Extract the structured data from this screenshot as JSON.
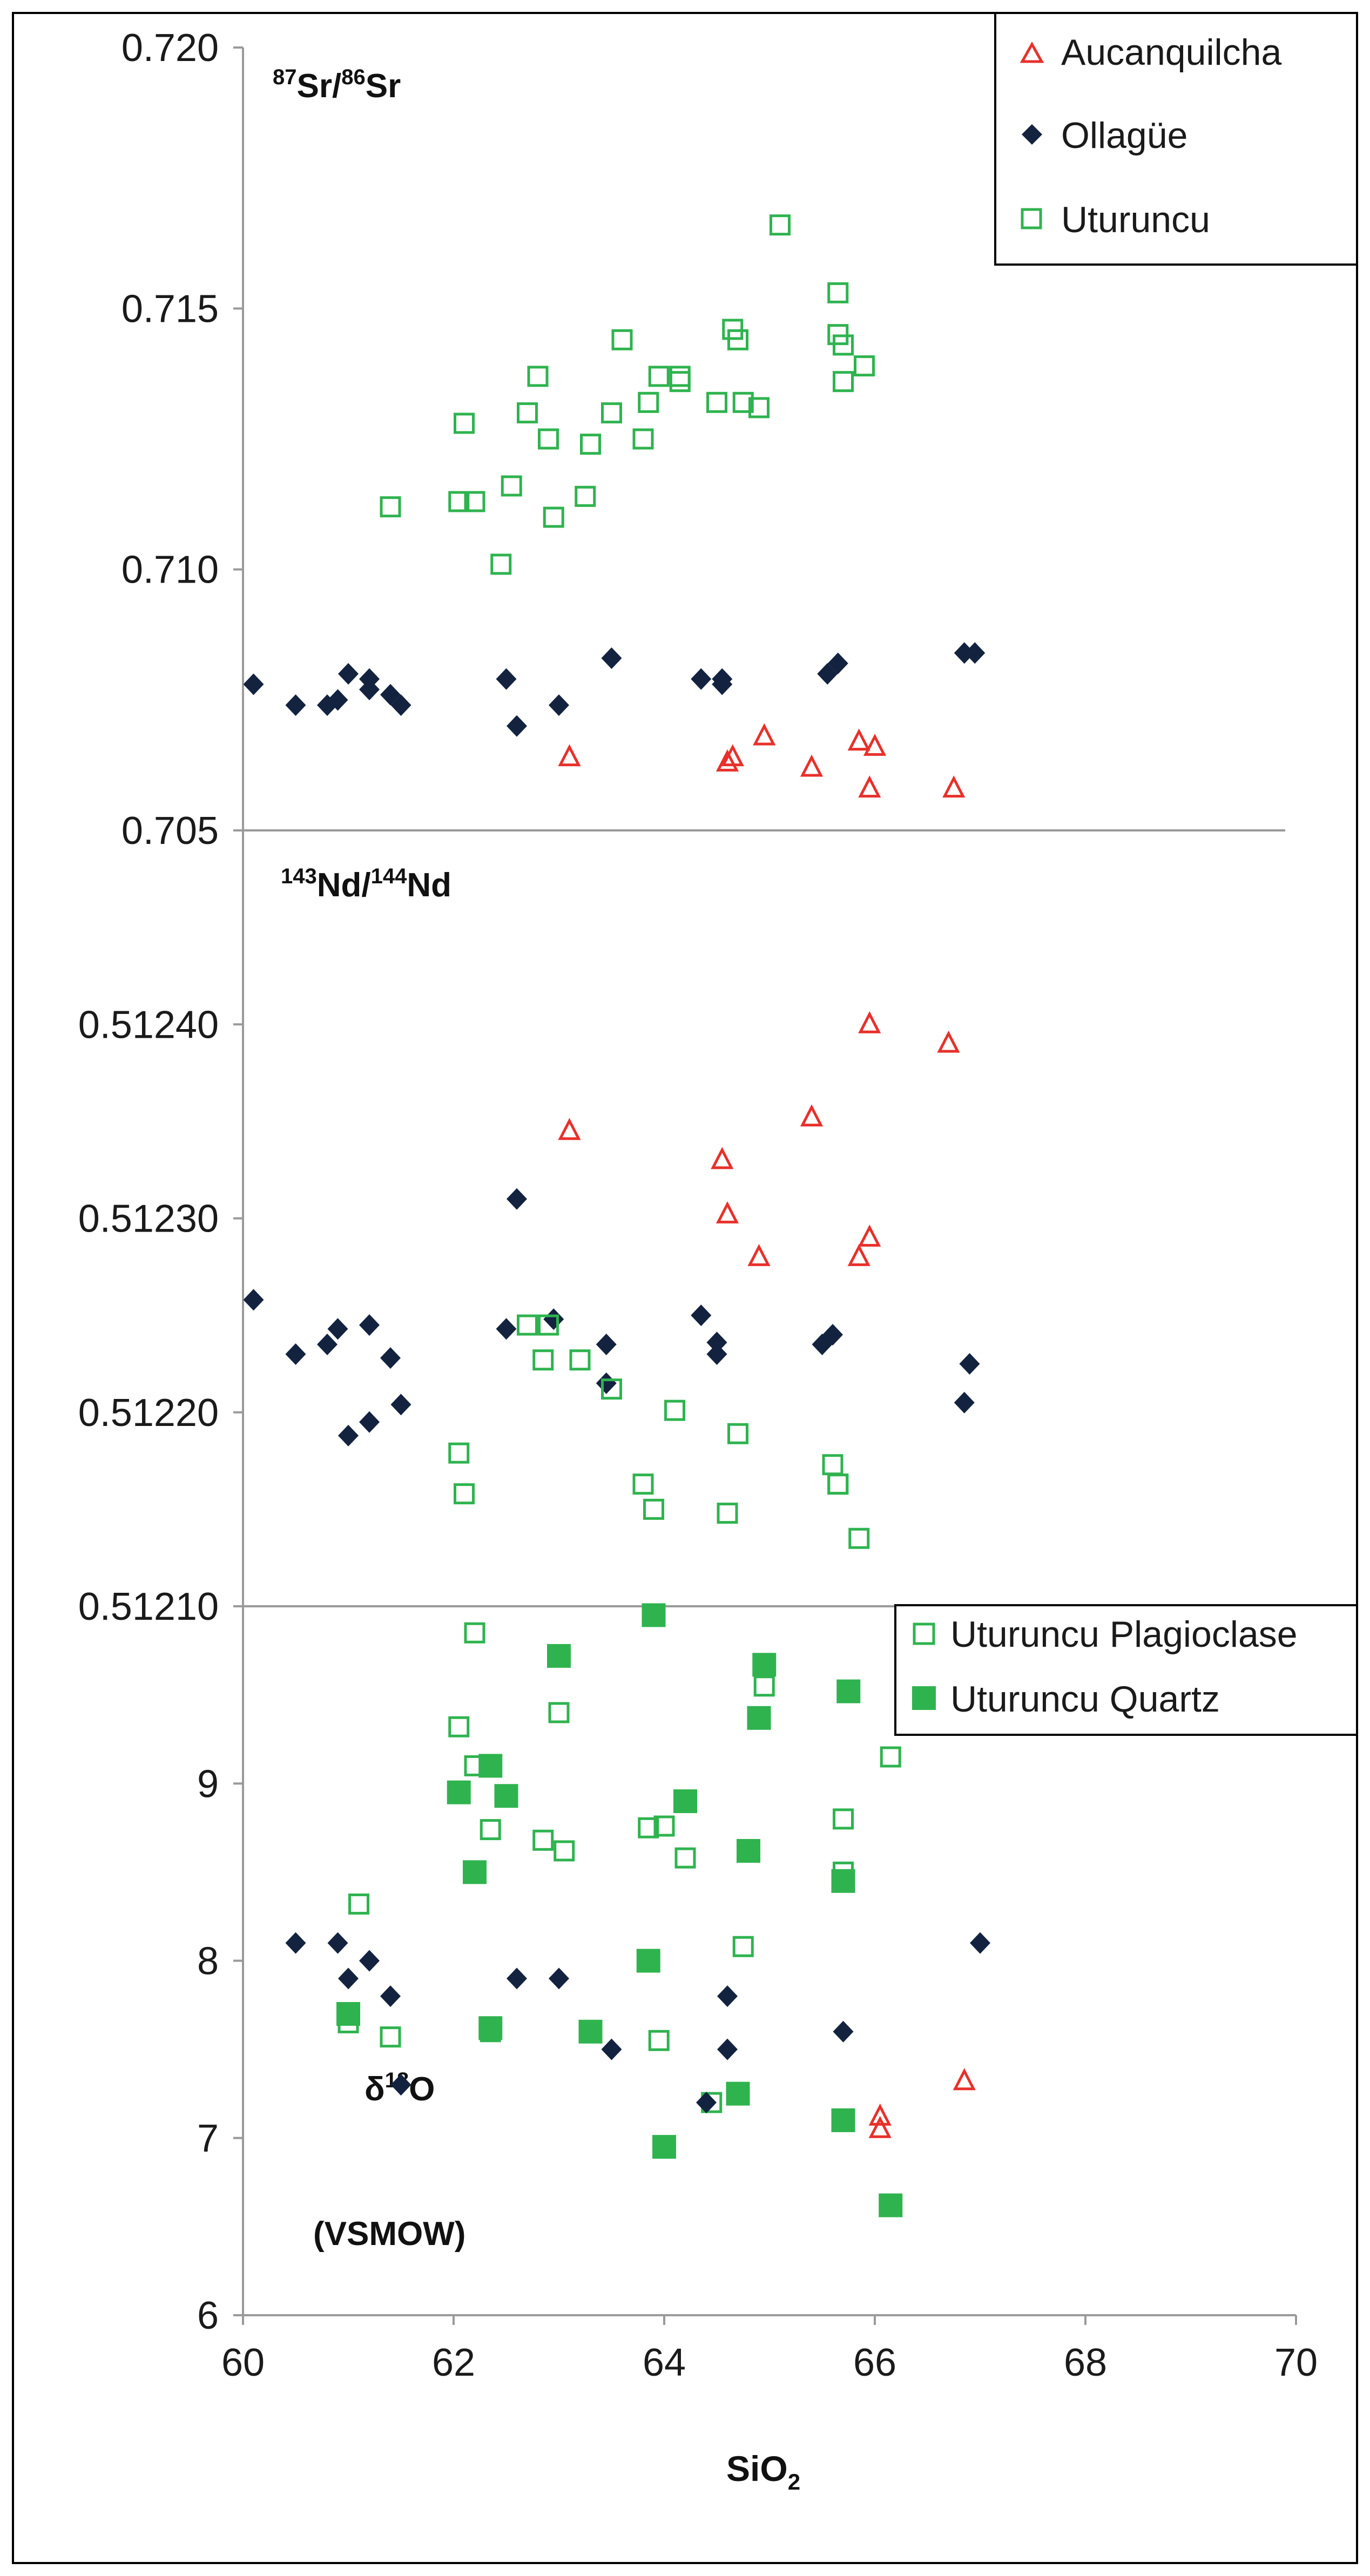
{
  "chart_data": {
    "type": "scatter",
    "xlabel": "SiO2",
    "xlim": [
      60,
      70
    ],
    "x_ticks": [
      "60",
      "62",
      "64",
      "66",
      "68",
      "70"
    ],
    "colors": {
      "aucanquilcha": "#e8302b",
      "ollague": "#13233f",
      "uturuncu": "#2fb34f",
      "axis": "#9a9a9a",
      "frame": "#000000"
    },
    "panels": [
      {
        "id": "sr",
        "label": {
          "sup1": "87",
          "main1": "Sr/",
          "sup2": "86",
          "main2": "Sr"
        },
        "ylim": [
          0.705,
          0.72
        ],
        "y_ticks": [
          {
            "value": 0.705,
            "text": "0.705"
          },
          {
            "value": 0.71,
            "text": "0.710"
          },
          {
            "value": 0.715,
            "text": "0.715"
          },
          {
            "value": 0.72,
            "text": "0.720"
          }
        ],
        "legend": [
          "Aucanquilcha",
          "Ollagüe",
          "Uturuncu"
        ],
        "series": [
          {
            "name": "Aucanquilcha",
            "marker": "triangle-open",
            "color": "#e8302b",
            "points": [
              [
                63.1,
                0.7064
              ],
              [
                64.6,
                0.7063
              ],
              [
                64.65,
                0.7064
              ],
              [
                64.95,
                0.7068
              ],
              [
                65.4,
                0.7062
              ],
              [
                65.85,
                0.7067
              ],
              [
                65.95,
                0.7058
              ],
              [
                66.0,
                0.7066
              ],
              [
                66.75,
                0.7058
              ]
            ]
          },
          {
            "name": "Ollagüe",
            "marker": "diamond-filled",
            "color": "#13233f",
            "points": [
              [
                60.1,
                0.7078
              ],
              [
                60.5,
                0.7074
              ],
              [
                60.8,
                0.7074
              ],
              [
                60.9,
                0.7075
              ],
              [
                61.0,
                0.708
              ],
              [
                61.2,
                0.7079
              ],
              [
                61.2,
                0.7077
              ],
              [
                61.4,
                0.7076
              ],
              [
                61.5,
                0.7074
              ],
              [
                62.5,
                0.7079
              ],
              [
                62.6,
                0.707
              ],
              [
                63.0,
                0.7074
              ],
              [
                63.5,
                0.7083
              ],
              [
                64.35,
                0.7079
              ],
              [
                64.55,
                0.7078
              ],
              [
                64.55,
                0.7079
              ],
              [
                65.55,
                0.708
              ],
              [
                65.65,
                0.7082
              ],
              [
                66.85,
                0.7084
              ],
              [
                66.95,
                0.7084
              ]
            ]
          },
          {
            "name": "Uturuncu",
            "marker": "square-open",
            "color": "#2fb34f",
            "points": [
              [
                61.4,
                0.7112
              ],
              [
                62.05,
                0.7113
              ],
              [
                62.1,
                0.7128
              ],
              [
                62.2,
                0.7113
              ],
              [
                62.45,
                0.7101
              ],
              [
                62.55,
                0.7116
              ],
              [
                62.7,
                0.713
              ],
              [
                62.8,
                0.7137
              ],
              [
                62.9,
                0.7125
              ],
              [
                62.95,
                0.711
              ],
              [
                63.25,
                0.7114
              ],
              [
                63.3,
                0.7124
              ],
              [
                63.5,
                0.713
              ],
              [
                63.6,
                0.7144
              ],
              [
                63.8,
                0.7125
              ],
              [
                63.85,
                0.7132
              ],
              [
                63.95,
                0.7137
              ],
              [
                64.15,
                0.7136
              ],
              [
                64.15,
                0.7137
              ],
              [
                64.5,
                0.7132
              ],
              [
                64.65,
                0.7146
              ],
              [
                64.7,
                0.7144
              ],
              [
                64.75,
                0.7132
              ],
              [
                64.9,
                0.7131
              ],
              [
                65.1,
                0.7166
              ],
              [
                65.65,
                0.7153
              ],
              [
                65.65,
                0.7145
              ],
              [
                65.7,
                0.7143
              ],
              [
                65.7,
                0.7136
              ],
              [
                65.9,
                0.7139
              ]
            ]
          }
        ]
      },
      {
        "id": "nd",
        "label": {
          "sup1": "143",
          "main1": "Nd/",
          "sup2": "144",
          "main2": "Nd"
        },
        "ylim": [
          0.5121,
          0.5125
        ],
        "y_ticks": [
          {
            "value": 0.5121,
            "text": "0.51210"
          },
          {
            "value": 0.5122,
            "text": "0.51220"
          },
          {
            "value": 0.5123,
            "text": "0.51230"
          },
          {
            "value": 0.5124,
            "text": "0.51240"
          }
        ],
        "series": [
          {
            "name": "Aucanquilcha",
            "marker": "triangle-open",
            "color": "#e8302b",
            "points": [
              [
                63.1,
                0.512345
              ],
              [
                64.55,
                0.51233
              ],
              [
                64.6,
                0.512302
              ],
              [
                64.9,
                0.51228
              ],
              [
                65.4,
                0.512352
              ],
              [
                65.85,
                0.51228
              ],
              [
                65.95,
                0.51229
              ],
              [
                65.95,
                0.5124
              ],
              [
                66.7,
                0.51239
              ]
            ]
          },
          {
            "name": "Ollagüe",
            "marker": "diamond-filled",
            "color": "#13233f",
            "points": [
              [
                60.1,
                0.512258
              ],
              [
                60.5,
                0.51223
              ],
              [
                60.8,
                0.512235
              ],
              [
                60.9,
                0.512243
              ],
              [
                61.0,
                0.512188
              ],
              [
                61.2,
                0.512245
              ],
              [
                61.2,
                0.512195
              ],
              [
                61.4,
                0.512228
              ],
              [
                61.5,
                0.512204
              ],
              [
                62.5,
                0.512243
              ],
              [
                62.6,
                0.51231
              ],
              [
                62.95,
                0.512248
              ],
              [
                63.45,
                0.512235
              ],
              [
                63.45,
                0.512215
              ],
              [
                64.35,
                0.51225
              ],
              [
                64.5,
                0.512236
              ],
              [
                64.5,
                0.51223
              ],
              [
                65.5,
                0.512235
              ],
              [
                65.6,
                0.51224
              ],
              [
                66.85,
                0.512205
              ],
              [
                66.9,
                0.512225
              ]
            ]
          },
          {
            "name": "Uturuncu",
            "marker": "square-open",
            "color": "#2fb34f",
            "points": [
              [
                62.05,
                0.512179
              ],
              [
                62.1,
                0.512158
              ],
              [
                62.7,
                0.512245
              ],
              [
                62.85,
                0.512227
              ],
              [
                62.9,
                0.512245
              ],
              [
                63.2,
                0.512227
              ],
              [
                63.5,
                0.512212
              ],
              [
                63.8,
                0.512163
              ],
              [
                63.9,
                0.51215
              ],
              [
                64.1,
                0.512201
              ],
              [
                64.6,
                0.512148
              ],
              [
                64.7,
                0.512189
              ],
              [
                65.6,
                0.512173
              ],
              [
                65.65,
                0.512163
              ],
              [
                65.65,
                0.512163
              ],
              [
                65.85,
                0.512135
              ]
            ]
          }
        ]
      },
      {
        "id": "o",
        "label": {
          "line1_pre": "δ",
          "line1_sup": "18",
          "line1_post": "O",
          "line2": "(VSMOW)"
        },
        "ylim": [
          6,
          10
        ],
        "y_ticks": [
          {
            "value": 6,
            "text": "6"
          },
          {
            "value": 7,
            "text": "7"
          },
          {
            "value": 8,
            "text": "8"
          },
          {
            "value": 9,
            "text": "9"
          }
        ],
        "legend": [
          "Uturuncu Plagioclase",
          "Uturuncu Quartz"
        ],
        "series": [
          {
            "name": "Uturuncu Plagioclase",
            "marker": "square-open",
            "color": "#2fb34f",
            "points": [
              [
                61.0,
                7.65
              ],
              [
                61.1,
                8.32
              ],
              [
                61.4,
                7.57
              ],
              [
                62.05,
                9.32
              ],
              [
                62.2,
                9.1
              ],
              [
                62.2,
                9.85
              ],
              [
                62.35,
                8.74
              ],
              [
                62.35,
                7.6
              ],
              [
                62.85,
                8.68
              ],
              [
                63.0,
                9.4
              ],
              [
                63.05,
                8.62
              ],
              [
                63.85,
                8.75
              ],
              [
                63.95,
                7.55
              ],
              [
                64.0,
                8.76
              ],
              [
                64.2,
                8.58
              ],
              [
                64.45,
                7.2
              ],
              [
                64.75,
                8.08
              ],
              [
                64.95,
                9.55
              ],
              [
                65.7,
                8.5
              ],
              [
                65.7,
                8.8
              ],
              [
                66.15,
                9.15
              ]
            ]
          },
          {
            "name": "Uturuncu Quartz",
            "marker": "square-filled",
            "color": "#2fb34f",
            "points": [
              [
                61.0,
                7.7
              ],
              [
                62.05,
                8.95
              ],
              [
                62.2,
                8.5
              ],
              [
                62.35,
                9.1
              ],
              [
                62.35,
                7.62
              ],
              [
                62.5,
                8.93
              ],
              [
                63.0,
                9.72
              ],
              [
                63.3,
                7.6
              ],
              [
                63.85,
                8.0
              ],
              [
                63.9,
                9.95
              ],
              [
                64.0,
                6.95
              ],
              [
                64.2,
                8.9
              ],
              [
                64.7,
                7.25
              ],
              [
                64.8,
                8.62
              ],
              [
                64.9,
                9.37
              ],
              [
                64.95,
                9.67
              ],
              [
                65.7,
                7.1
              ],
              [
                65.7,
                8.45
              ],
              [
                65.75,
                9.52
              ],
              [
                66.15,
                6.62
              ]
            ]
          },
          {
            "name": "Ollagüe",
            "marker": "diamond-filled",
            "color": "#13233f",
            "points": [
              [
                60.5,
                8.1
              ],
              [
                60.9,
                8.1
              ],
              [
                61.0,
                7.9
              ],
              [
                61.2,
                8.0
              ],
              [
                61.4,
                7.8
              ],
              [
                61.5,
                7.3
              ],
              [
                62.6,
                7.9
              ],
              [
                63.0,
                7.9
              ],
              [
                63.5,
                7.5
              ],
              [
                64.4,
                7.2
              ],
              [
                64.6,
                7.5
              ],
              [
                64.6,
                7.8
              ],
              [
                65.7,
                7.6
              ],
              [
                67.0,
                8.1
              ]
            ]
          },
          {
            "name": "Aucanquilcha",
            "marker": "triangle-open",
            "color": "#e8302b",
            "points": [
              [
                66.05,
                7.12
              ],
              [
                66.05,
                7.05
              ],
              [
                66.85,
                7.32
              ]
            ]
          }
        ]
      }
    ]
  }
}
